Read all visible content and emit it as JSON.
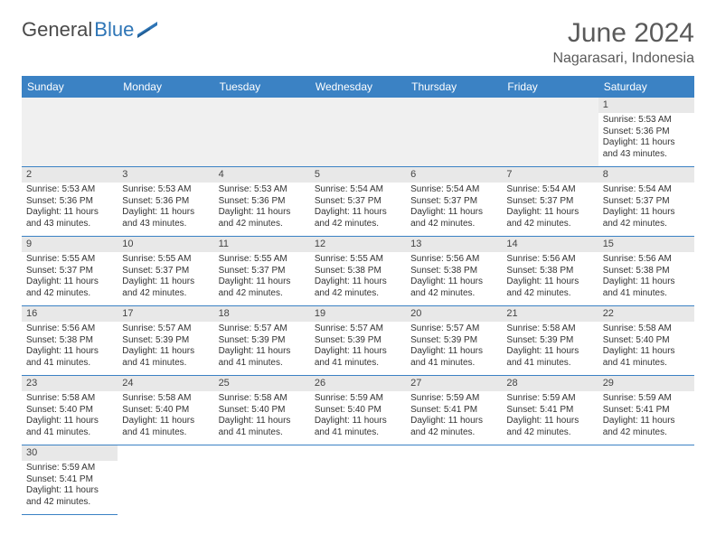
{
  "logo": {
    "text1": "General",
    "text2": "Blue"
  },
  "title": "June 2024",
  "location": "Nagarasari, Indonesia",
  "colors": {
    "header_bg": "#3b82c4",
    "header_fg": "#ffffff",
    "daynum_bg": "#e8e8e8",
    "border": "#3b82c4",
    "empty_bg": "#f0f0f0",
    "logo_blue": "#2e75b6"
  },
  "weekdays": [
    "Sunday",
    "Monday",
    "Tuesday",
    "Wednesday",
    "Thursday",
    "Friday",
    "Saturday"
  ],
  "first_weekday_index": 6,
  "days": [
    {
      "n": 1,
      "sunrise": "5:53 AM",
      "sunset": "5:36 PM",
      "daylight": "11 hours and 43 minutes."
    },
    {
      "n": 2,
      "sunrise": "5:53 AM",
      "sunset": "5:36 PM",
      "daylight": "11 hours and 43 minutes."
    },
    {
      "n": 3,
      "sunrise": "5:53 AM",
      "sunset": "5:36 PM",
      "daylight": "11 hours and 43 minutes."
    },
    {
      "n": 4,
      "sunrise": "5:53 AM",
      "sunset": "5:36 PM",
      "daylight": "11 hours and 42 minutes."
    },
    {
      "n": 5,
      "sunrise": "5:54 AM",
      "sunset": "5:37 PM",
      "daylight": "11 hours and 42 minutes."
    },
    {
      "n": 6,
      "sunrise": "5:54 AM",
      "sunset": "5:37 PM",
      "daylight": "11 hours and 42 minutes."
    },
    {
      "n": 7,
      "sunrise": "5:54 AM",
      "sunset": "5:37 PM",
      "daylight": "11 hours and 42 minutes."
    },
    {
      "n": 8,
      "sunrise": "5:54 AM",
      "sunset": "5:37 PM",
      "daylight": "11 hours and 42 minutes."
    },
    {
      "n": 9,
      "sunrise": "5:55 AM",
      "sunset": "5:37 PM",
      "daylight": "11 hours and 42 minutes."
    },
    {
      "n": 10,
      "sunrise": "5:55 AM",
      "sunset": "5:37 PM",
      "daylight": "11 hours and 42 minutes."
    },
    {
      "n": 11,
      "sunrise": "5:55 AM",
      "sunset": "5:37 PM",
      "daylight": "11 hours and 42 minutes."
    },
    {
      "n": 12,
      "sunrise": "5:55 AM",
      "sunset": "5:38 PM",
      "daylight": "11 hours and 42 minutes."
    },
    {
      "n": 13,
      "sunrise": "5:56 AM",
      "sunset": "5:38 PM",
      "daylight": "11 hours and 42 minutes."
    },
    {
      "n": 14,
      "sunrise": "5:56 AM",
      "sunset": "5:38 PM",
      "daylight": "11 hours and 42 minutes."
    },
    {
      "n": 15,
      "sunrise": "5:56 AM",
      "sunset": "5:38 PM",
      "daylight": "11 hours and 41 minutes."
    },
    {
      "n": 16,
      "sunrise": "5:56 AM",
      "sunset": "5:38 PM",
      "daylight": "11 hours and 41 minutes."
    },
    {
      "n": 17,
      "sunrise": "5:57 AM",
      "sunset": "5:39 PM",
      "daylight": "11 hours and 41 minutes."
    },
    {
      "n": 18,
      "sunrise": "5:57 AM",
      "sunset": "5:39 PM",
      "daylight": "11 hours and 41 minutes."
    },
    {
      "n": 19,
      "sunrise": "5:57 AM",
      "sunset": "5:39 PM",
      "daylight": "11 hours and 41 minutes."
    },
    {
      "n": 20,
      "sunrise": "5:57 AM",
      "sunset": "5:39 PM",
      "daylight": "11 hours and 41 minutes."
    },
    {
      "n": 21,
      "sunrise": "5:58 AM",
      "sunset": "5:39 PM",
      "daylight": "11 hours and 41 minutes."
    },
    {
      "n": 22,
      "sunrise": "5:58 AM",
      "sunset": "5:40 PM",
      "daylight": "11 hours and 41 minutes."
    },
    {
      "n": 23,
      "sunrise": "5:58 AM",
      "sunset": "5:40 PM",
      "daylight": "11 hours and 41 minutes."
    },
    {
      "n": 24,
      "sunrise": "5:58 AM",
      "sunset": "5:40 PM",
      "daylight": "11 hours and 41 minutes."
    },
    {
      "n": 25,
      "sunrise": "5:58 AM",
      "sunset": "5:40 PM",
      "daylight": "11 hours and 41 minutes."
    },
    {
      "n": 26,
      "sunrise": "5:59 AM",
      "sunset": "5:40 PM",
      "daylight": "11 hours and 41 minutes."
    },
    {
      "n": 27,
      "sunrise": "5:59 AM",
      "sunset": "5:41 PM",
      "daylight": "11 hours and 42 minutes."
    },
    {
      "n": 28,
      "sunrise": "5:59 AM",
      "sunset": "5:41 PM",
      "daylight": "11 hours and 42 minutes."
    },
    {
      "n": 29,
      "sunrise": "5:59 AM",
      "sunset": "5:41 PM",
      "daylight": "11 hours and 42 minutes."
    },
    {
      "n": 30,
      "sunrise": "5:59 AM",
      "sunset": "5:41 PM",
      "daylight": "11 hours and 42 minutes."
    }
  ],
  "labels": {
    "sunrise": "Sunrise:",
    "sunset": "Sunset:",
    "daylight": "Daylight:"
  }
}
